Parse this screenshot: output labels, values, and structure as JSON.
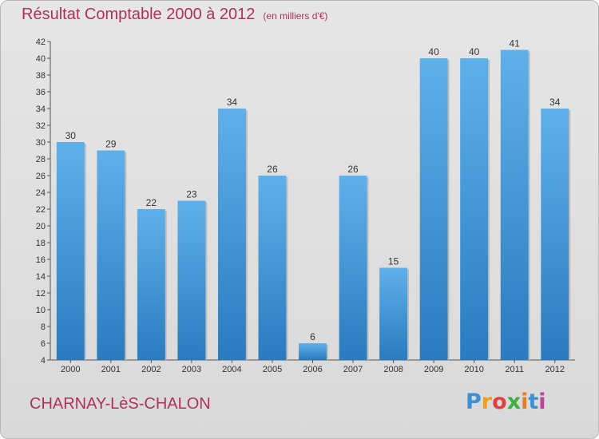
{
  "header": {
    "title": "Résultat Comptable 2000 à 2012",
    "subtitle": "(en milliers d'€)"
  },
  "footer": {
    "place": "CHARNAY-LèS-CHALON",
    "logo_letters": [
      "P",
      "r",
      "o",
      "x",
      "i",
      "t",
      "i"
    ],
    "logo_colors": [
      "#3f8fd6",
      "#f0a020",
      "#e04040",
      "#3fae3f",
      "#e08020",
      "#3f8fd6",
      "#c040a0"
    ]
  },
  "chart_data": {
    "type": "bar",
    "title": "Résultat Comptable 2000 à 2012",
    "subtitle": "(en milliers d'€)",
    "categories": [
      "2000",
      "2001",
      "2002",
      "2003",
      "2004",
      "2005",
      "2006",
      "2007",
      "2008",
      "2009",
      "2010",
      "2011",
      "2012"
    ],
    "values": [
      30,
      29,
      22,
      23,
      34,
      26,
      6,
      26,
      15,
      40,
      40,
      41,
      34
    ],
    "ylim": [
      4,
      42
    ],
    "yticks": [
      4,
      6,
      8,
      10,
      12,
      14,
      16,
      18,
      20,
      22,
      24,
      26,
      28,
      30,
      32,
      34,
      36,
      38,
      40,
      42
    ],
    "grid": false,
    "bar_color": "#4a9ee0",
    "data_labels": true
  }
}
